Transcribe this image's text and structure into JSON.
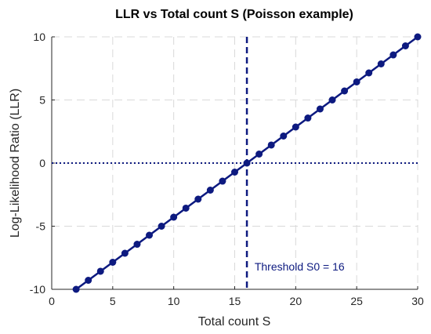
{
  "chart_data": {
    "type": "line",
    "title": "LLR vs Total count S (Poisson example)",
    "xlabel": "Total count S",
    "ylabel": "Log-Likelihood Ratio (LLR)",
    "xlim": [
      0,
      30
    ],
    "ylim": [
      -10,
      10
    ],
    "xticks": [
      0,
      5,
      10,
      15,
      20,
      25,
      30
    ],
    "yticks": [
      -10,
      -5,
      0,
      5,
      10
    ],
    "grid": true,
    "series": [
      {
        "name": "",
        "color": "#0d1a80",
        "x": [
          2,
          3,
          4,
          5,
          6,
          7,
          8,
          9,
          10,
          11,
          12,
          13,
          14,
          15,
          16,
          17,
          18,
          19,
          20,
          21,
          22,
          23,
          24,
          25,
          26,
          27,
          28,
          29,
          30
        ],
        "y": [
          -10,
          -9.286,
          -8.571,
          -7.857,
          -7.143,
          -6.429,
          -5.714,
          -5,
          -4.286,
          -3.571,
          -2.857,
          -2.143,
          -1.429,
          -0.714,
          0,
          0.714,
          1.429,
          2.143,
          2.857,
          3.571,
          4.286,
          5,
          5.714,
          6.429,
          7.143,
          7.857,
          8.571,
          9.286,
          10
        ]
      }
    ],
    "reference_lines": {
      "horizontal_y": 0,
      "vertical_x": 16
    },
    "annotation": {
      "text": "Threshold S0 = 16",
      "x": 16.5,
      "y": -8.2
    },
    "colors": {
      "line": "#0d1a80",
      "grid": "#d9d9d9",
      "axis": "#262626"
    }
  }
}
